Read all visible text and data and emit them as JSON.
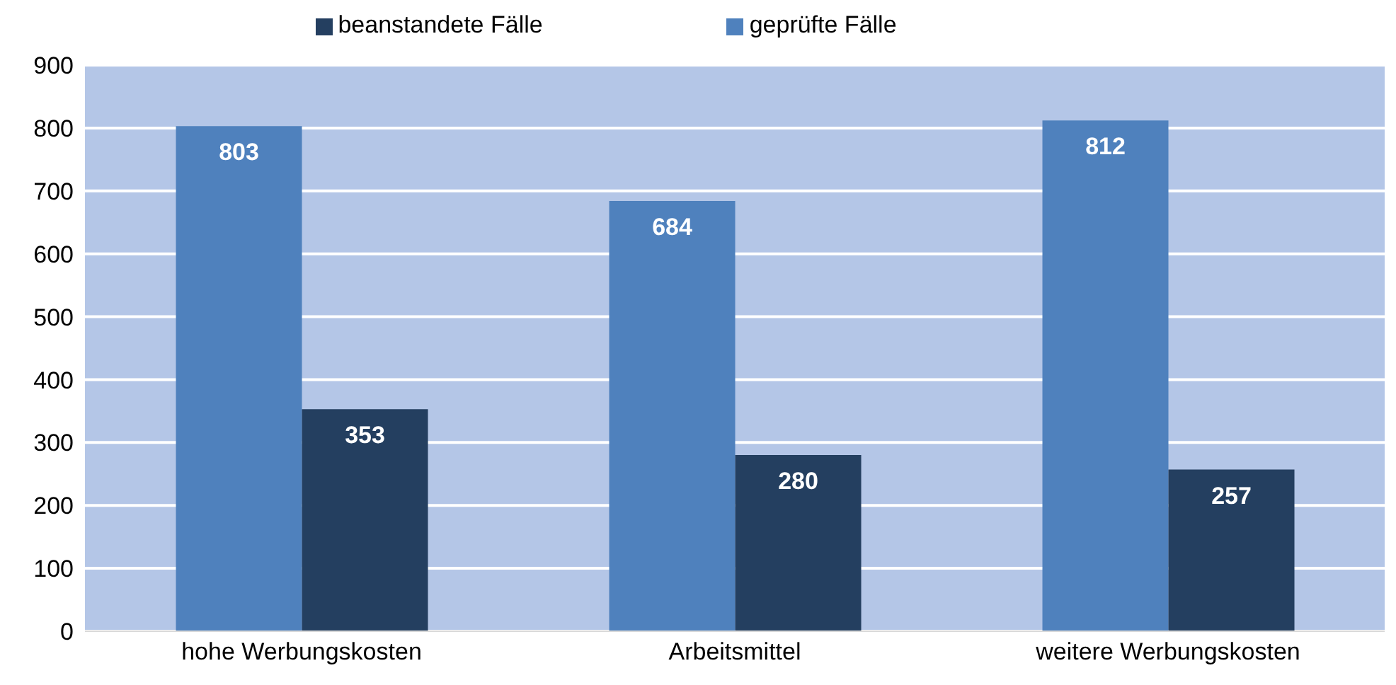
{
  "chart_data": {
    "type": "bar",
    "categories": [
      "hohe Werbungskosten",
      "Arbeitsmittel",
      "weitere Werbungskosten"
    ],
    "series": [
      {
        "name": "geprüfte Fälle",
        "color": "#4f81bd",
        "values": [
          803,
          684,
          812
        ]
      },
      {
        "name": "beanstandete Fälle",
        "color": "#243f60",
        "values": [
          353,
          280,
          257
        ]
      }
    ],
    "ylim": [
      0,
      900
    ],
    "yticks": [
      0,
      100,
      200,
      300,
      400,
      500,
      600,
      700,
      800,
      900
    ],
    "grid": "y",
    "legend": "top",
    "data_labels": true
  }
}
